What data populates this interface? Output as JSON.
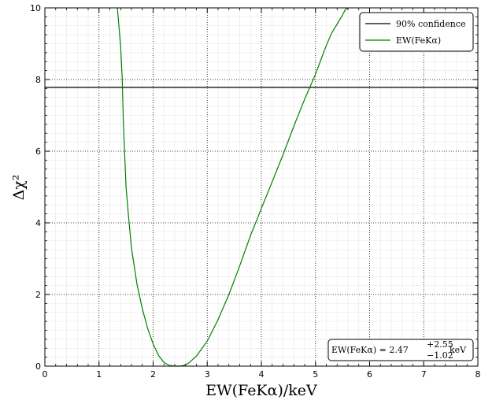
{
  "chart_data": {
    "type": "line",
    "title": "",
    "xlabel": "EW(FeKα)/keV",
    "ylabel": "Δχ²",
    "xlim": [
      0,
      8
    ],
    "ylim": [
      0,
      10
    ],
    "xticks": [
      "0",
      "1",
      "2",
      "3",
      "4",
      "5",
      "6",
      "7",
      "8"
    ],
    "yticks": [
      "0",
      "2",
      "4",
      "6",
      "8",
      "10"
    ],
    "grid": true,
    "legend_position": "top-right",
    "series": [
      {
        "name": "90% confidence",
        "color": "#000000",
        "kind": "hline",
        "y": 7.78
      },
      {
        "name": "EW(FeKα)",
        "color": "#008000",
        "x": [
          1.34,
          1.4,
          1.43,
          1.45,
          1.5,
          1.55,
          1.6,
          1.7,
          1.8,
          1.9,
          2.0,
          2.1,
          2.2,
          2.3,
          2.4,
          2.47,
          2.55,
          2.65,
          2.8,
          3.0,
          3.2,
          3.4,
          3.6,
          3.8,
          4.0,
          4.2,
          4.4,
          4.6,
          4.8,
          5.0,
          5.1,
          5.2,
          5.3,
          5.4,
          5.5,
          5.55,
          5.6
        ],
        "y": [
          10.0,
          8.9,
          8.0,
          6.8,
          5.0,
          4.1,
          3.3,
          2.3,
          1.6,
          1.05,
          0.62,
          0.3,
          0.1,
          0.02,
          0.0,
          0.0,
          0.01,
          0.08,
          0.28,
          0.7,
          1.3,
          2.0,
          2.8,
          3.65,
          4.4,
          5.15,
          5.9,
          6.7,
          7.45,
          8.15,
          8.55,
          8.95,
          9.3,
          9.55,
          9.8,
          9.95,
          10.0
        ]
      }
    ],
    "annotation": {
      "lhs": "EW(FeKα) = 2.47",
      "plus": "+2.55",
      "minus": "−1.02",
      "unit": "keV"
    }
  }
}
